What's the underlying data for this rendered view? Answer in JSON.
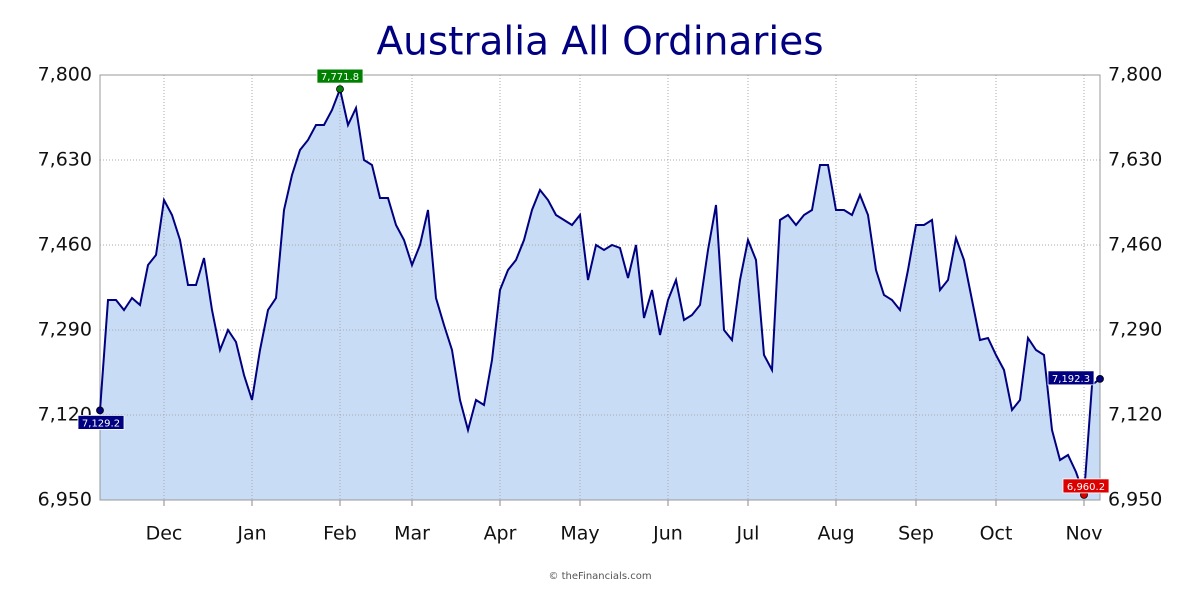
{
  "chart_data": {
    "type": "area",
    "title": "Australia All Ordinaries",
    "footer": "© theFinancials.com",
    "color": "#000080",
    "fill": "#c8dcf5",
    "grid": true,
    "label_colors": {
      "max": "#008000",
      "min": "#dd0000",
      "ends": "#000080"
    },
    "ylim": [
      6950,
      7800
    ],
    "yticks": [
      {
        "value": 6950,
        "label": "6,950"
      },
      {
        "value": 7120,
        "label": "7,120"
      },
      {
        "value": 7290,
        "label": "7,290"
      },
      {
        "value": 7460,
        "label": "7,460"
      },
      {
        "value": 7630,
        "label": "7,630"
      },
      {
        "value": 7800,
        "label": "7,800"
      }
    ],
    "categories": [
      null,
      null,
      null,
      null,
      null,
      null,
      null,
      null,
      "Dec",
      null,
      null,
      null,
      null,
      null,
      null,
      null,
      null,
      null,
      null,
      "Jan",
      null,
      null,
      null,
      null,
      null,
      null,
      null,
      null,
      null,
      null,
      "Feb",
      null,
      null,
      null,
      null,
      null,
      null,
      null,
      null,
      "Mar",
      null,
      null,
      null,
      null,
      null,
      null,
      null,
      null,
      null,
      null,
      "Apr",
      null,
      null,
      null,
      null,
      null,
      null,
      null,
      null,
      null,
      "May",
      null,
      null,
      null,
      null,
      null,
      null,
      null,
      null,
      null,
      null,
      "Jun",
      null,
      null,
      null,
      null,
      null,
      null,
      null,
      null,
      null,
      "Jul",
      null,
      null,
      null,
      null,
      null,
      null,
      null,
      null,
      null,
      null,
      "Aug",
      null,
      null,
      null,
      null,
      null,
      null,
      null,
      null,
      null,
      "Sep",
      null,
      null,
      null,
      null,
      null,
      null,
      null,
      null,
      null,
      "Oct",
      null,
      null,
      null,
      null,
      null,
      null,
      null,
      null,
      null,
      null,
      "Nov",
      null,
      null
    ],
    "values": [
      7129.2,
      7350,
      7350,
      7330,
      7354,
      7340,
      7420,
      7440,
      7550,
      7520,
      7470,
      7380,
      7380,
      7434,
      7330,
      7250,
      7290,
      7266,
      7200,
      7150,
      7250,
      7330,
      7354,
      7530,
      7600,
      7650,
      7670,
      7700,
      7700,
      7730,
      7771.8,
      7700,
      7734,
      7630,
      7620,
      7554,
      7554,
      7500,
      7470,
      7420,
      7460,
      7530,
      7354,
      7300,
      7250,
      7150,
      7090,
      7150,
      7140,
      7230,
      7370,
      7410,
      7430,
      7470,
      7530,
      7570,
      7550,
      7520,
      7510,
      7500,
      7520,
      7390,
      7460,
      7450,
      7460,
      7454,
      7394,
      7460,
      7314,
      7370,
      7280,
      7350,
      7390,
      7310,
      7320,
      7340,
      7450,
      7540,
      7290,
      7270,
      7390,
      7470,
      7430,
      7240,
      7210,
      7510,
      7520,
      7500,
      7520,
      7530,
      7620,
      7620,
      7530,
      7530,
      7520,
      7560,
      7520,
      7410,
      7360,
      7350,
      7330,
      7410,
      7500,
      7500,
      7510,
      7370,
      7390,
      7474,
      7430,
      7350,
      7270,
      7274,
      7240,
      7210,
      7130,
      7150,
      7274,
      7250,
      7240,
      7090,
      7030,
      7040,
      7006,
      6960.2,
      7180,
      7192.3
    ],
    "value_labels": [
      "7,129.2",
      null,
      null,
      null,
      null,
      null,
      null,
      null,
      null,
      null,
      null,
      null,
      null,
      null,
      null,
      null,
      null,
      null,
      null,
      null,
      null,
      null,
      null,
      null,
      null,
      null,
      null,
      null,
      null,
      null,
      "7,771.8",
      null,
      null,
      null,
      null,
      null,
      null,
      null,
      null,
      null,
      null,
      null,
      null,
      null,
      null,
      null,
      null,
      null,
      null,
      null,
      null,
      null,
      null,
      null,
      null,
      null,
      null,
      null,
      null,
      null,
      null,
      null,
      null,
      null,
      null,
      null,
      null,
      null,
      null,
      null,
      null,
      null,
      null,
      null,
      null,
      null,
      null,
      null,
      null,
      null,
      null,
      null,
      null,
      null,
      null,
      null,
      null,
      null,
      null,
      null,
      null,
      null,
      null,
      null,
      null,
      null,
      null,
      null,
      null,
      null,
      null,
      null,
      null,
      null,
      null,
      null,
      null,
      null,
      null,
      null,
      null,
      null,
      null,
      null,
      null,
      null,
      null,
      null,
      null,
      null,
      null,
      null,
      null,
      "6,960.2",
      null,
      "7,192.3"
    ]
  }
}
